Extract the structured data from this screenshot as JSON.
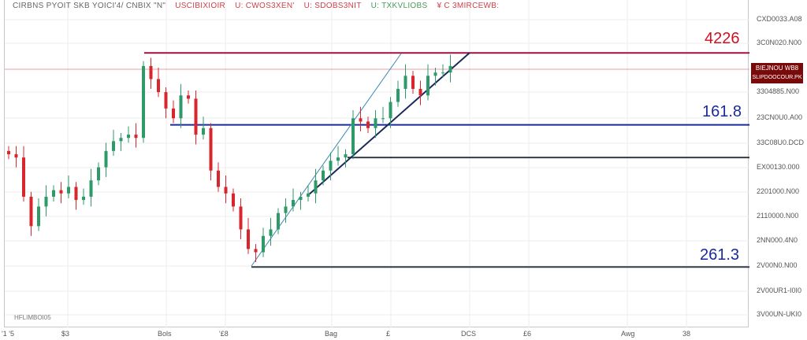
{
  "title_segments": [
    {
      "text": "CIRBNS PYOIT SKB YOICI'4/ CNBIX \"N\"",
      "color": "#666666"
    },
    {
      "text": "USCIBIXIOIR",
      "color": "#d0404a"
    },
    {
      "text": "U: CWOS3XEN'",
      "color": "#d0404a"
    },
    {
      "text": "U: SDOBS3NIT",
      "color": "#d0404a"
    },
    {
      "text": "U: TXKVLIOBS",
      "color": "#4a9a5a"
    },
    {
      "text": "¥ C 3MIRCEWB:",
      "color": "#d0404a"
    }
  ],
  "y_axis_labels": [
    "CXD0033.A08",
    "3C0N020.N00",
    "3304885.N00",
    "23CN0U0.A00",
    "33C08U0.DCD",
    "EX00130.000",
    "2201000.N00",
    "2110000.N00",
    "2NN000.4N0",
    "2V00N0.N00",
    "2V00UR1-I0I0",
    "3V00UN-UKI0"
  ],
  "x_axis_labels": [
    "'1 '5",
    "$3",
    "Bols",
    "'£8",
    "Bag",
    "£",
    "DCS",
    "£6",
    "Awg",
    "38"
  ],
  "price_tag": {
    "line1": "BIEJNOU WB8",
    "line2": "SLIPDOOCOUR.PK",
    "color": "#7a0a0a"
  },
  "watermark": "HFLIMBOI05",
  "levels": [
    {
      "label": "4226",
      "color": "#d01020"
    },
    {
      "label": "161.8",
      "color": "#1a2a9a"
    },
    {
      "label": "261.3",
      "color": "#1a2a9a"
    }
  ],
  "colors": {
    "up": "#2e9a6a",
    "down": "#d8262c",
    "grid": "#eeeeee"
  },
  "chart_data": {
    "type": "candlestick",
    "ylim": [
      0,
      100
    ],
    "closes": [
      53,
      52,
      40,
      31,
      37,
      40,
      42,
      41,
      43,
      39,
      40,
      45,
      49,
      54,
      57,
      58,
      59,
      58,
      80,
      76,
      72,
      67,
      64,
      71,
      70,
      59,
      61,
      48,
      43,
      41,
      37,
      30,
      24,
      23,
      28,
      30,
      35,
      37,
      39,
      40,
      41,
      45,
      48,
      51,
      52,
      53,
      64,
      63,
      61,
      64,
      64,
      69,
      73,
      77,
      73,
      71,
      77,
      78,
      78,
      80
    ],
    "horizontal_levels": [
      {
        "value": 84,
        "color": "#a01040",
        "label": "4226"
      },
      {
        "value": 79,
        "color": "#e8a0a8"
      },
      {
        "value": 62,
        "color": "#1a2a9a",
        "label": "161.8"
      },
      {
        "value": 52,
        "color": "#333d4a"
      },
      {
        "value": 18.5,
        "color": "#333d4a",
        "label": "261.3"
      }
    ]
  }
}
